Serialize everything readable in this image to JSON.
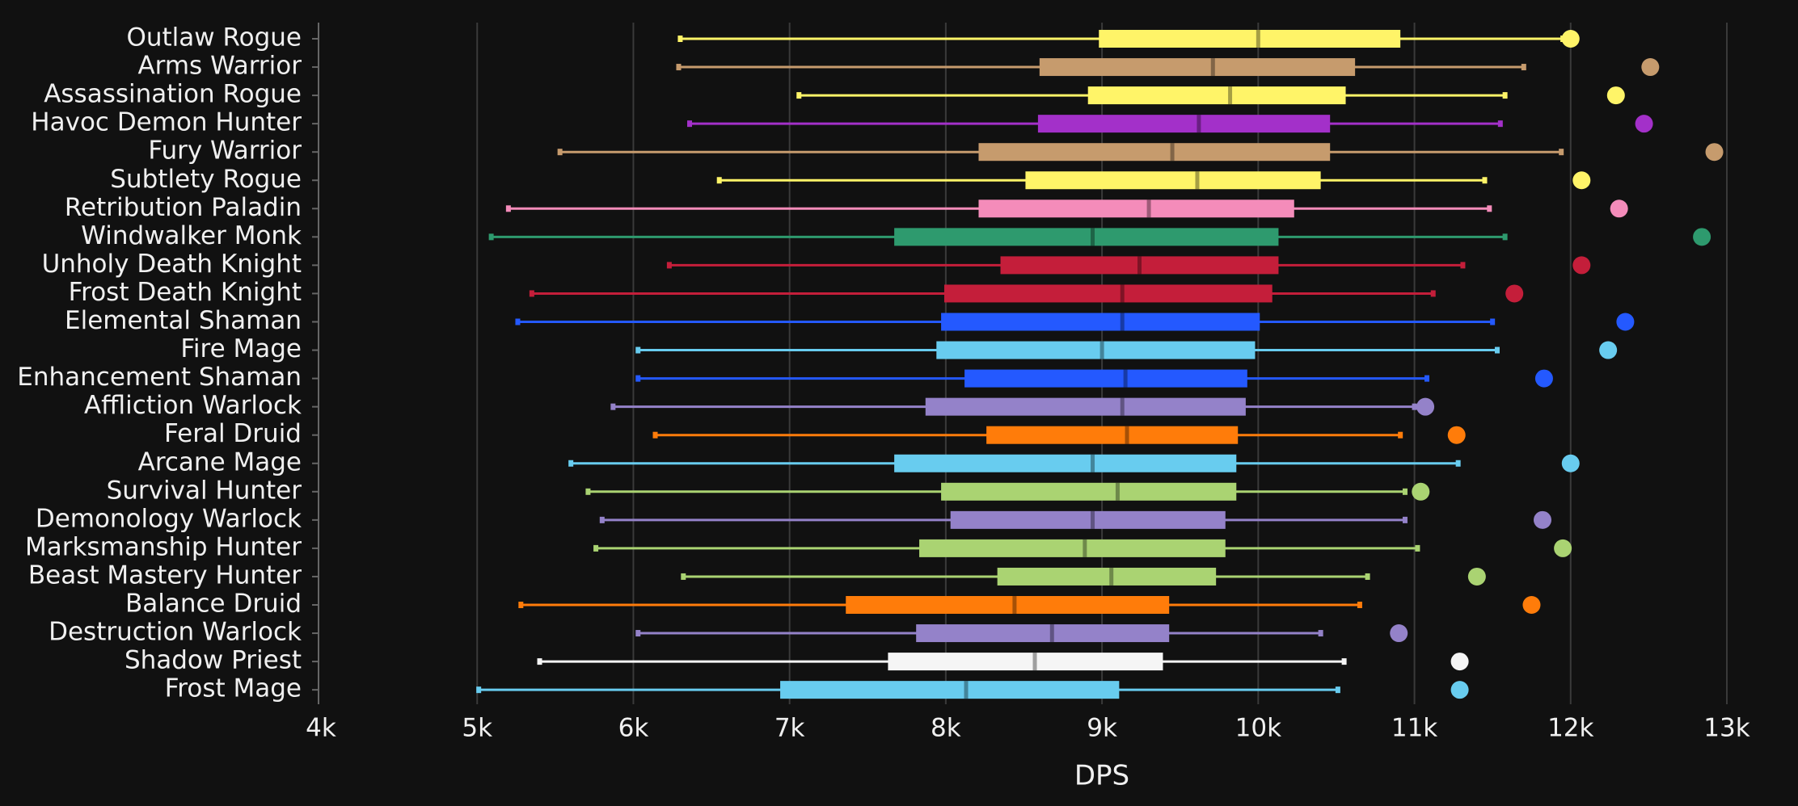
{
  "chart_data": {
    "type": "boxplot",
    "orientation": "horizontal",
    "xlabel": "DPS",
    "xlim": [
      4000,
      13000
    ],
    "xticks": [
      {
        "value": 4000,
        "label": "4k"
      },
      {
        "value": 5000,
        "label": "5k"
      },
      {
        "value": 6000,
        "label": "6k"
      },
      {
        "value": 7000,
        "label": "7k"
      },
      {
        "value": 8000,
        "label": "8k"
      },
      {
        "value": 9000,
        "label": "9k"
      },
      {
        "value": 10000,
        "label": "10k"
      },
      {
        "value": 11000,
        "label": "11k"
      },
      {
        "value": 12000,
        "label": "12k"
      },
      {
        "value": 13000,
        "label": "13k"
      }
    ],
    "grid": true,
    "categories": [
      "Outlaw Rogue",
      "Arms Warrior",
      "Assassination Rogue",
      "Havoc Demon Hunter",
      "Fury Warrior",
      "Subtlety Rogue",
      "Retribution Paladin",
      "Windwalker Monk",
      "Unholy Death Knight",
      "Frost Death Knight",
      "Elemental Shaman",
      "Fire Mage",
      "Enhancement Shaman",
      "Affliction Warlock",
      "Feral Druid",
      "Arcane Mage",
      "Survival Hunter",
      "Demonology Warlock",
      "Marksmanship Hunter",
      "Beast Mastery Hunter",
      "Balance Druid",
      "Destruction Warlock",
      "Shadow Priest",
      "Frost Mage"
    ],
    "colors": [
      "#fff468",
      "#c69b6d",
      "#fff468",
      "#a330c9",
      "#c69b6d",
      "#fff468",
      "#f48cba",
      "#2e9a6e",
      "#c41e3a",
      "#c41e3a",
      "#2459ff",
      "#68ccef",
      "#2459ff",
      "#9482c9",
      "#ff7c0a",
      "#68ccef",
      "#aad372",
      "#9482c9",
      "#aad372",
      "#aad372",
      "#ff7c0a",
      "#9482c9",
      "#f5f5f5",
      "#68ccef"
    ],
    "whisker_low": [
      6300,
      6290,
      7060,
      6360,
      5530,
      6550,
      5200,
      5090,
      6230,
      5350,
      5260,
      6030,
      6030,
      5870,
      6140,
      5600,
      5710,
      5800,
      5760,
      6320,
      5280,
      6030,
      5400,
      5010
    ],
    "q1": [
      8980,
      8600,
      8910,
      8590,
      8210,
      8510,
      8210,
      7670,
      8350,
      7990,
      7970,
      7940,
      8120,
      7870,
      8260,
      7670,
      7970,
      8030,
      7830,
      8330,
      7360,
      7810,
      7630,
      6940
    ],
    "median": [
      10000,
      9710,
      9820,
      9620,
      9450,
      9610,
      9300,
      8940,
      9240,
      9130,
      9130,
      9000,
      9150,
      9130,
      9160,
      8940,
      9100,
      8940,
      8890,
      9060,
      8440,
      8680,
      8570,
      8130
    ],
    "q3": [
      10910,
      10620,
      10560,
      10460,
      10460,
      10400,
      10230,
      10130,
      10130,
      10090,
      10010,
      9980,
      9930,
      9920,
      9870,
      9860,
      9860,
      9790,
      9790,
      9730,
      9430,
      9430,
      9390,
      9110
    ],
    "whisker_high": [
      11950,
      11700,
      11580,
      11550,
      11940,
      11450,
      11480,
      11580,
      11310,
      11120,
      11500,
      11530,
      11080,
      11000,
      10910,
      11280,
      10940,
      10940,
      11020,
      10700,
      10650,
      10400,
      10550,
      10510
    ],
    "outliers": [
      12000,
      12510,
      12290,
      12470,
      12920,
      12070,
      12310,
      12840,
      12070,
      11640,
      12350,
      12240,
      11830,
      11070,
      11270,
      12000,
      11040,
      11820,
      11950,
      11400,
      11750,
      10900,
      11290,
      11290
    ]
  }
}
